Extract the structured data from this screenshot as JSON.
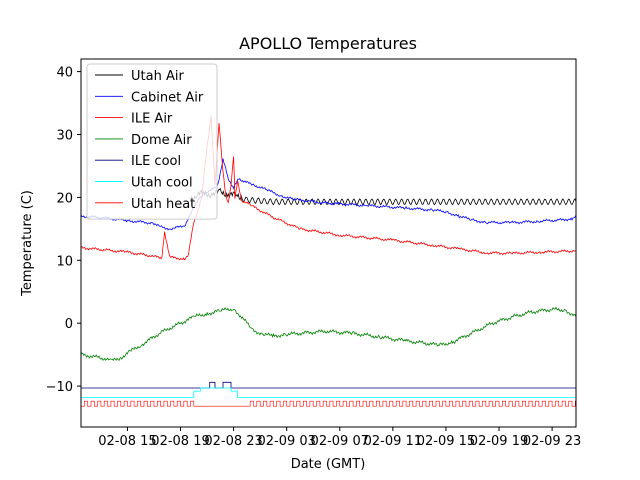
{
  "chart_data": {
    "type": "line",
    "title": "APOLLO Temperatures",
    "xlabel": "Date (GMT)",
    "ylabel": "Temperature (C)",
    "xlim": [
      11.5,
      48.8
    ],
    "ylim": [
      -16.5,
      42
    ],
    "x_unit": "hours since 2019-02-08 00:00 GMT",
    "grid": false,
    "legend_position": "upper-left",
    "x_ticks": [
      {
        "value": 15,
        "label": "02-08 15"
      },
      {
        "value": 19,
        "label": "02-08 19"
      },
      {
        "value": 23,
        "label": "02-08 23"
      },
      {
        "value": 27,
        "label": "02-09 03"
      },
      {
        "value": 31,
        "label": "02-09 07"
      },
      {
        "value": 35,
        "label": "02-09 11"
      },
      {
        "value": 39,
        "label": "02-09 15"
      },
      {
        "value": 43,
        "label": "02-09 19"
      },
      {
        "value": 47,
        "label": "02-09 23"
      }
    ],
    "y_ticks": [
      {
        "value": -10,
        "label": "−10"
      },
      {
        "value": 0,
        "label": "0"
      },
      {
        "value": 10,
        "label": "10"
      },
      {
        "value": 20,
        "label": "20"
      },
      {
        "value": 30,
        "label": "30"
      },
      {
        "value": 40,
        "label": "40"
      }
    ],
    "series": [
      {
        "name": "Utah Air",
        "color": "#000000",
        "width": 0.8,
        "x": [
          19.7,
          20.2,
          20.8,
          21.4,
          22.0,
          22.6,
          23.2,
          24.0,
          26.0,
          30.0,
          35.0,
          40.0,
          45.0,
          48.8
        ],
        "y": [
          19.8,
          20.4,
          20.6,
          20.5,
          20.8,
          20.6,
          20.2,
          19.6,
          19.3,
          19.3,
          19.3,
          19.3,
          19.3,
          19.3
        ]
      },
      {
        "name": "Cabinet Air",
        "color": "#0000ff",
        "width": 0.8,
        "x": [
          11.5,
          13.0,
          15.0,
          17.0,
          17.5,
          18.2,
          18.8,
          19.3,
          19.8,
          20.4,
          21.1,
          21.8,
          22.2,
          22.6,
          23.0,
          23.4,
          23.8,
          24.5,
          25.5,
          26.5,
          27.5,
          30.0,
          33.0,
          36.0,
          38.0,
          39.0,
          40.0,
          41.0,
          42.0,
          44.0,
          46.0,
          47.5,
          48.5,
          48.8
        ],
        "y": [
          17.0,
          16.8,
          16.3,
          15.9,
          15.3,
          15.0,
          15.2,
          15.5,
          17.5,
          20.0,
          20.8,
          22.0,
          26.0,
          23.0,
          21.5,
          23.0,
          22.5,
          22.0,
          21.2,
          20.3,
          19.7,
          19.1,
          18.7,
          18.3,
          18.0,
          17.7,
          17.0,
          16.4,
          16.0,
          16.0,
          16.2,
          16.4,
          16.6,
          17.2
        ]
      },
      {
        "name": "ILE Air",
        "color": "#ff0000",
        "width": 0.8,
        "x": [
          11.5,
          13.0,
          15.0,
          16.5,
          17.0,
          17.4,
          17.6,
          17.8,
          18.2,
          19.3,
          19.6,
          20.0,
          20.6,
          21.0,
          21.3,
          21.6,
          21.9,
          22.2,
          22.4,
          22.6,
          22.8,
          23.0,
          23.1,
          23.3,
          23.6,
          24.5,
          26.0,
          28.0,
          31.0,
          35.0,
          38.0,
          40.0,
          42.0,
          44.0,
          46.0,
          48.8
        ],
        "y": [
          12.0,
          11.7,
          11.3,
          10.8,
          10.6,
          10.5,
          10.4,
          14.5,
          10.5,
          10.2,
          11.0,
          16.0,
          20.0,
          28.0,
          33.0,
          22.0,
          32.0,
          24.0,
          20.5,
          19.0,
          22.0,
          26.5,
          20.0,
          22.5,
          19.5,
          18.5,
          16.8,
          15.0,
          14.0,
          13.2,
          12.4,
          11.8,
          11.2,
          11.1,
          11.3,
          11.5
        ]
      },
      {
        "name": "Dome Air",
        "color": "#008000",
        "width": 0.8,
        "x": [
          11.5,
          13.0,
          13.8,
          14.5,
          15.2,
          16.0,
          17.5,
          19.0,
          20.0,
          21.0,
          22.0,
          23.0,
          23.6,
          24.4,
          25.2,
          26.0,
          27.0,
          28.5,
          30.0,
          32.0,
          34.0,
          36.0,
          37.5,
          38.5,
          39.5,
          41.0,
          42.5,
          44.0,
          45.5,
          47.0,
          48.0,
          48.8
        ],
        "y": [
          -5.0,
          -5.5,
          -6.0,
          -5.5,
          -4.5,
          -3.5,
          -1.5,
          0.0,
          1.0,
          1.5,
          2.0,
          2.3,
          1.0,
          -1.0,
          -1.8,
          -2.0,
          -1.8,
          -1.5,
          -1.3,
          -1.6,
          -2.2,
          -2.8,
          -3.2,
          -3.5,
          -3.0,
          -1.5,
          0.0,
          1.0,
          1.8,
          2.2,
          2.1,
          1.0
        ]
      },
      {
        "name": "ILE cool",
        "color": "#000080",
        "width": 0.8,
        "x": [
          11.5,
          21.2,
          21.2,
          21.6,
          21.6,
          22.2,
          22.2,
          22.8,
          22.8,
          48.8
        ],
        "y": [
          -10.3,
          -10.3,
          -9.4,
          -9.4,
          -10.3,
          -10.3,
          -9.4,
          -9.4,
          -10.3,
          -10.3
        ]
      },
      {
        "name": "Utah cool",
        "color": "#00ffff",
        "width": 0.8,
        "x": [
          11.5,
          20.0,
          20.0,
          20.5,
          20.5,
          22.8,
          22.8,
          23.3,
          23.3,
          48.8
        ],
        "y": [
          -11.8,
          -11.8,
          -10.8,
          -10.8,
          -10.3,
          -10.3,
          -10.8,
          -10.8,
          -11.8,
          -11.8
        ]
      },
      {
        "name": "Utah heat",
        "color": "#ff0000",
        "width": 0.6,
        "pulse": {
          "period_h": 0.5,
          "low": -13.2,
          "high": -12.4,
          "off_from": 19.8,
          "off_to": 24.0
        },
        "x": [
          11.5,
          48.8
        ],
        "y": [
          -12.8,
          -12.8
        ]
      }
    ]
  }
}
